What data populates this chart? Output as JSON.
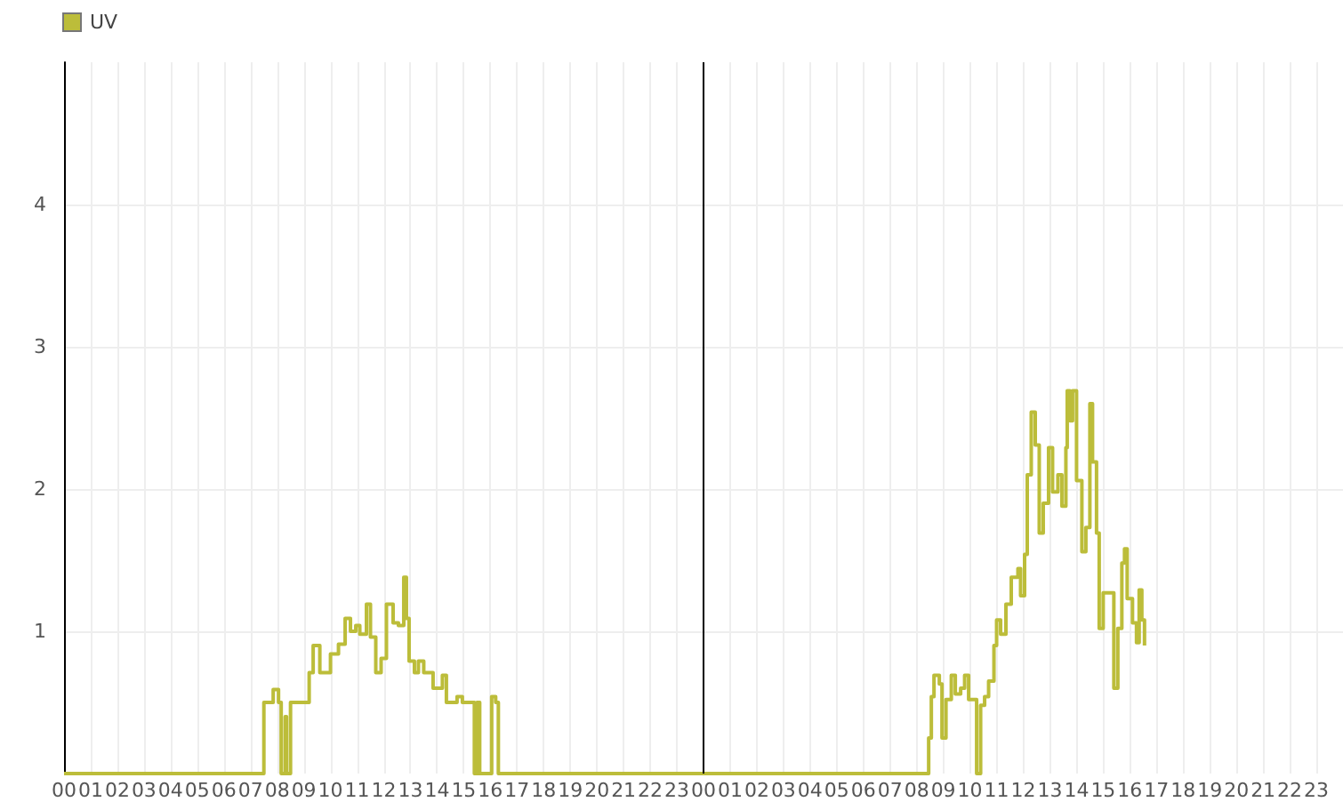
{
  "chart_data": {
    "type": "step",
    "legend": "top left",
    "grid": true,
    "xlim": [
      0,
      48
    ],
    "ylim": [
      0,
      5
    ],
    "yticks": [
      1,
      2,
      3,
      4
    ],
    "xticks": [
      {
        "value": 0,
        "label": "00"
      },
      {
        "value": 1,
        "label": "01"
      },
      {
        "value": 2,
        "label": "02"
      },
      {
        "value": 3,
        "label": "03"
      },
      {
        "value": 4,
        "label": "04"
      },
      {
        "value": 5,
        "label": "05"
      },
      {
        "value": 6,
        "label": "06"
      },
      {
        "value": 7,
        "label": "07"
      },
      {
        "value": 8,
        "label": "08"
      },
      {
        "value": 9,
        "label": "09"
      },
      {
        "value": 10,
        "label": "10"
      },
      {
        "value": 11,
        "label": "11"
      },
      {
        "value": 12,
        "label": "12"
      },
      {
        "value": 13,
        "label": "13"
      },
      {
        "value": 14,
        "label": "14"
      },
      {
        "value": 15,
        "label": "15"
      },
      {
        "value": 16,
        "label": "16"
      },
      {
        "value": 17,
        "label": "17"
      },
      {
        "value": 18,
        "label": "18"
      },
      {
        "value": 19,
        "label": "19"
      },
      {
        "value": 20,
        "label": "20"
      },
      {
        "value": 21,
        "label": "21"
      },
      {
        "value": 22,
        "label": "22"
      },
      {
        "value": 23,
        "label": "23"
      },
      {
        "value": 24,
        "label": "00"
      },
      {
        "value": 25,
        "label": "01"
      },
      {
        "value": 26,
        "label": "02"
      },
      {
        "value": 27,
        "label": "03"
      },
      {
        "value": 28,
        "label": "04"
      },
      {
        "value": 29,
        "label": "05"
      },
      {
        "value": 30,
        "label": "06"
      },
      {
        "value": 31,
        "label": "07"
      },
      {
        "value": 32,
        "label": "08"
      },
      {
        "value": 33,
        "label": "09"
      },
      {
        "value": 34,
        "label": "10"
      },
      {
        "value": 35,
        "label": "11"
      },
      {
        "value": 36,
        "label": "12"
      },
      {
        "value": 37,
        "label": "13"
      },
      {
        "value": 38,
        "label": "14"
      },
      {
        "value": 39,
        "label": "15"
      },
      {
        "value": 40,
        "label": "16"
      },
      {
        "value": 41,
        "label": "17"
      },
      {
        "value": 42,
        "label": "18"
      },
      {
        "value": 43,
        "label": "19"
      },
      {
        "value": 44,
        "label": "20"
      },
      {
        "value": 45,
        "label": "21"
      },
      {
        "value": 46,
        "label": "22"
      },
      {
        "value": 47,
        "label": "23"
      }
    ],
    "ref_lines": [
      {
        "axis": "x",
        "value": 24,
        "color": "#000000"
      }
    ],
    "series": [
      {
        "name": "UV",
        "color": "#bcbd3a",
        "x": [
          0,
          7.5,
          7.85,
          8.05,
          8.15,
          8.3,
          8.35,
          8.5,
          8.85,
          9.2,
          9.35,
          9.6,
          9.8,
          10.0,
          10.3,
          10.55,
          10.75,
          10.95,
          11.1,
          11.35,
          11.5,
          11.7,
          11.9,
          12.1,
          12.35,
          12.55,
          12.75,
          12.85,
          12.95,
          13.15,
          13.3,
          13.5,
          13.85,
          14.2,
          14.35,
          14.75,
          14.95,
          15.4,
          15.5,
          15.6,
          16.05,
          16.2,
          16.3,
          32.45,
          32.55,
          32.65,
          32.85,
          32.95,
          33.1,
          33.3,
          33.45,
          33.65,
          33.8,
          33.95,
          34.25,
          34.4,
          34.55,
          34.7,
          34.9,
          35.0,
          35.15,
          35.35,
          35.55,
          35.8,
          35.9,
          36.05,
          36.15,
          36.3,
          36.45,
          36.6,
          36.75,
          36.95,
          37.1,
          37.3,
          37.45,
          37.6,
          37.65,
          37.75,
          37.85,
          38.0,
          38.2,
          38.35,
          38.5,
          38.6,
          38.75,
          38.85,
          39.0,
          39.25,
          39.4,
          39.55,
          39.7,
          39.8,
          39.9,
          40.1,
          40.25,
          40.35,
          40.45,
          40.55
        ],
        "values": [
          0,
          0.5,
          0.59,
          0.5,
          0,
          0.4,
          0,
          0.5,
          0.5,
          0.71,
          0.9,
          0.71,
          0.71,
          0.84,
          0.91,
          1.09,
          1.0,
          1.04,
          0.98,
          1.19,
          0.96,
          0.71,
          0.81,
          1.19,
          1.06,
          1.04,
          1.38,
          1.09,
          0.79,
          0.71,
          0.79,
          0.71,
          0.6,
          0.69,
          0.5,
          0.54,
          0.5,
          0,
          0.5,
          0,
          0.54,
          0.5,
          0,
          0.25,
          0.54,
          0.69,
          0.63,
          0.25,
          0.52,
          0.69,
          0.56,
          0.6,
          0.69,
          0.52,
          0,
          0.48,
          0.54,
          0.65,
          0.9,
          1.08,
          0.98,
          1.19,
          1.38,
          1.44,
          1.25,
          1.54,
          2.1,
          2.54,
          2.31,
          1.69,
          1.9,
          2.29,
          1.98,
          2.1,
          1.88,
          2.29,
          2.69,
          2.48,
          2.69,
          2.06,
          1.56,
          1.73,
          2.6,
          2.19,
          1.69,
          1.02,
          1.27,
          1.27,
          0.6,
          1.02,
          1.48,
          1.58,
          1.23,
          1.06,
          0.92,
          1.29,
          1.08,
          0.9
        ]
      }
    ]
  }
}
